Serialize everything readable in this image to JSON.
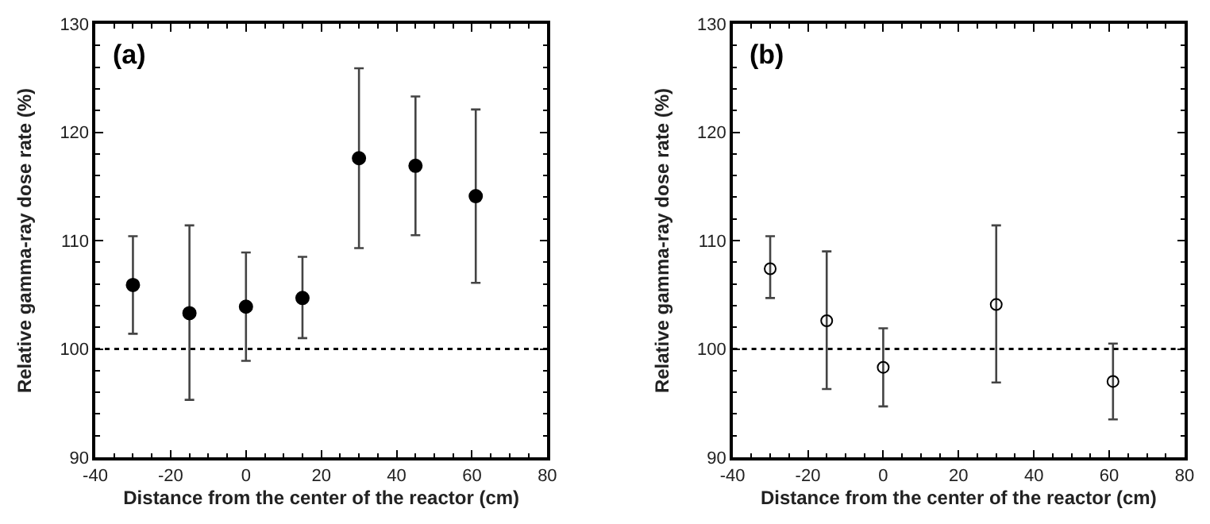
{
  "chart_data": [
    {
      "type": "scatter",
      "x": [
        -30,
        -15,
        0,
        15,
        30,
        45,
        61
      ],
      "xlabel": "Distance from the center of the reactor (cm)",
      "ylabel": "Relative gamma-ray dose rate (%)",
      "annotations": [
        "(a)"
      ],
      "marker": "circle",
      "series": [
        {
          "color": "#000000",
          "values": [
            105.9,
            103.3,
            103.9,
            104.7,
            117.6,
            116.9,
            114.1
          ],
          "errors": [
            [
              101.4,
              110.4
            ],
            [
              95.3,
              111.4
            ],
            [
              98.9,
              108.9
            ],
            [
              101.0,
              108.5
            ],
            [
              109.3,
              125.9
            ],
            [
              110.5,
              123.3
            ],
            [
              106.1,
              122.1
            ]
          ]
        }
      ],
      "xlim": [
        -40,
        80
      ],
      "xticks": [
        -40,
        -20,
        0,
        20,
        40,
        60,
        80
      ],
      "ylim": [
        90,
        130
      ],
      "yticks": [
        90,
        100,
        110,
        120,
        130
      ],
      "ref_lines": [
        {
          "axis": "y",
          "value": 100,
          "color": "#000000",
          "line_style": "dotted"
        }
      ]
    },
    {
      "type": "scatter",
      "x": [
        -30,
        -15,
        0,
        30,
        61
      ],
      "xlabel": "Distance from the center of the reactor (cm)",
      "ylabel": "Relative gamma-ray dose rate (%)",
      "annotations": [
        "(b)"
      ],
      "marker": "circle",
      "series": [
        {
          "color": "#000000",
          "values": [
            107.4,
            102.6,
            98.3,
            104.1,
            97.0
          ],
          "errors": [
            [
              104.7,
              110.4
            ],
            [
              96.3,
              109.0
            ],
            [
              94.7,
              101.9
            ],
            [
              96.9,
              111.4
            ],
            [
              93.5,
              100.5
            ]
          ]
        }
      ],
      "xlim": [
        -40,
        80
      ],
      "xticks": [
        -40,
        -20,
        0,
        20,
        40,
        60,
        80
      ],
      "ylim": [
        90,
        130
      ],
      "yticks": [
        90,
        100,
        110,
        120,
        130
      ],
      "ref_lines": [
        {
          "axis": "y",
          "value": 100,
          "color": "#000000",
          "line_style": "dotted"
        }
      ]
    }
  ]
}
